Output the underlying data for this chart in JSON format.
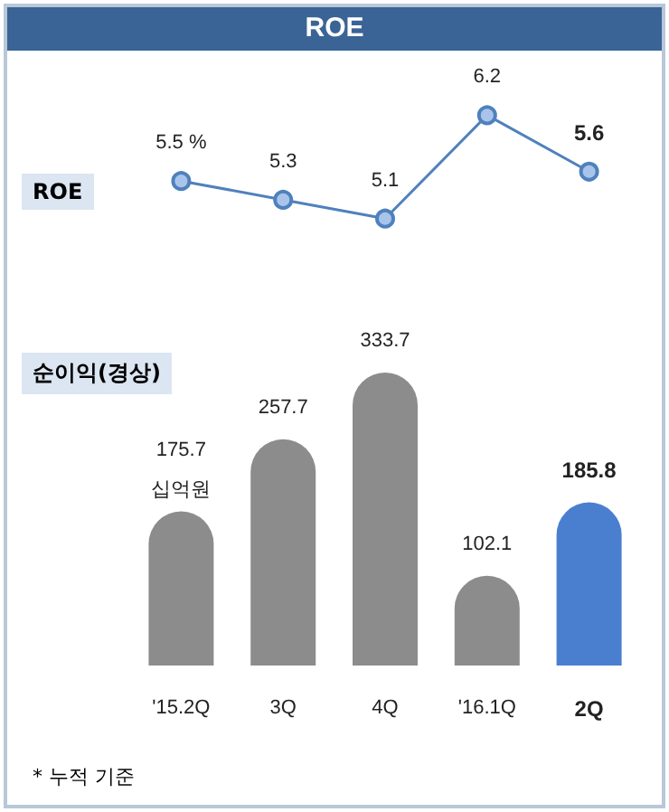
{
  "chart_data": [
    {
      "type": "line",
      "title": "ROE",
      "ylabel": "ROE",
      "categories": [
        null,
        null,
        null,
        null,
        null
      ],
      "series": [
        {
          "color": "#4f81bd",
          "values": [
            5.5,
            5.3,
            5.1,
            6.2,
            5.6
          ],
          "value_labels": [
            "5.5 %",
            "5.3",
            "5.1",
            "6.2",
            "5.6"
          ]
        }
      ],
      "marker": "circle",
      "tick_labels": false
    },
    {
      "type": "bar",
      "ylabel": "순이익(경상)",
      "categories": [
        "'15.2Q",
        "3Q",
        "4Q",
        "'16.1Q",
        "2Q"
      ],
      "values": [
        175.7,
        257.7,
        333.7,
        102.1,
        185.8
      ],
      "colors": [
        "#8c8c8c",
        "#8c8c8c",
        "#8c8c8c",
        "#8c8c8c",
        "#4a7fd0"
      ],
      "data_labels": true,
      "annotations": [
        {
          "text": "십억원",
          "x": "'15.2Q",
          "y": 175.7
        },
        "* 누적 기준"
      ],
      "tick_labels": "x"
    }
  ]
}
